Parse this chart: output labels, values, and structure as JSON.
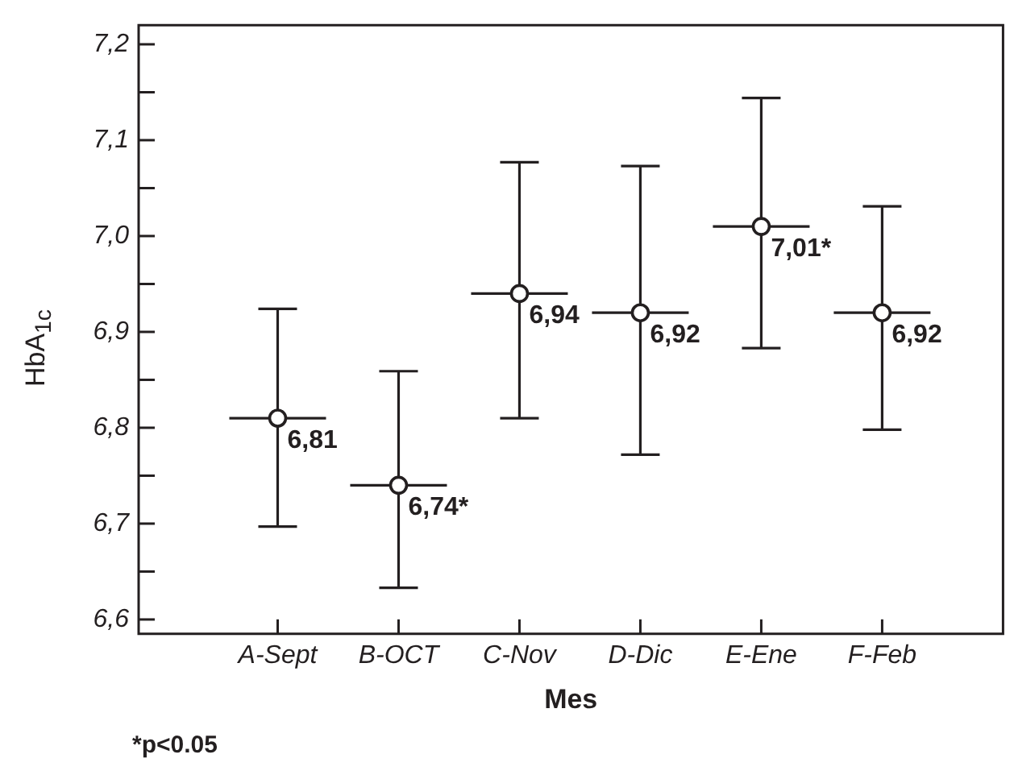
{
  "chart_data": {
    "type": "scatter",
    "xlabel": "Mes",
    "ylabel": "HbA$_{1c}$",
    "categories": [
      "A-Sept",
      "B-OCT",
      "C-Nov",
      "D-Dic",
      "E-Ene",
      "F-Feb"
    ],
    "values": [
      6.81,
      6.74,
      6.94,
      6.92,
      7.01,
      6.92
    ],
    "value_labels": [
      "6,81",
      "6,74*",
      "6,94",
      "6,92",
      "7,01*",
      "6,92"
    ],
    "errors": [
      [
        6.697,
        6.924
      ],
      [
        6.633,
        6.859
      ],
      [
        6.81,
        7.077
      ],
      [
        6.772,
        7.073
      ],
      [
        6.883,
        7.144
      ],
      [
        6.798,
        7.031
      ]
    ],
    "color": "#231f20",
    "marker": "circle",
    "ylim": [
      6.585,
      7.22
    ],
    "yticks": [
      {
        "value": 6.6,
        "label": "6,6"
      },
      {
        "value": 6.65,
        "label": null
      },
      {
        "value": 6.7,
        "label": "6,7"
      },
      {
        "value": 6.75,
        "label": null
      },
      {
        "value": 6.8,
        "label": "6,8"
      },
      {
        "value": 6.85,
        "label": null
      },
      {
        "value": 6.9,
        "label": "6,9"
      },
      {
        "value": 6.95,
        "label": null
      },
      {
        "value": 7.0,
        "label": "7,0"
      },
      {
        "value": 7.05,
        "label": null
      },
      {
        "value": 7.1,
        "label": "7,1"
      },
      {
        "value": 7.15,
        "label": null
      },
      {
        "value": 7.2,
        "label": "7,2"
      }
    ],
    "annotations": [
      "*p<0.05"
    ],
    "grid": false,
    "legend": false
  }
}
